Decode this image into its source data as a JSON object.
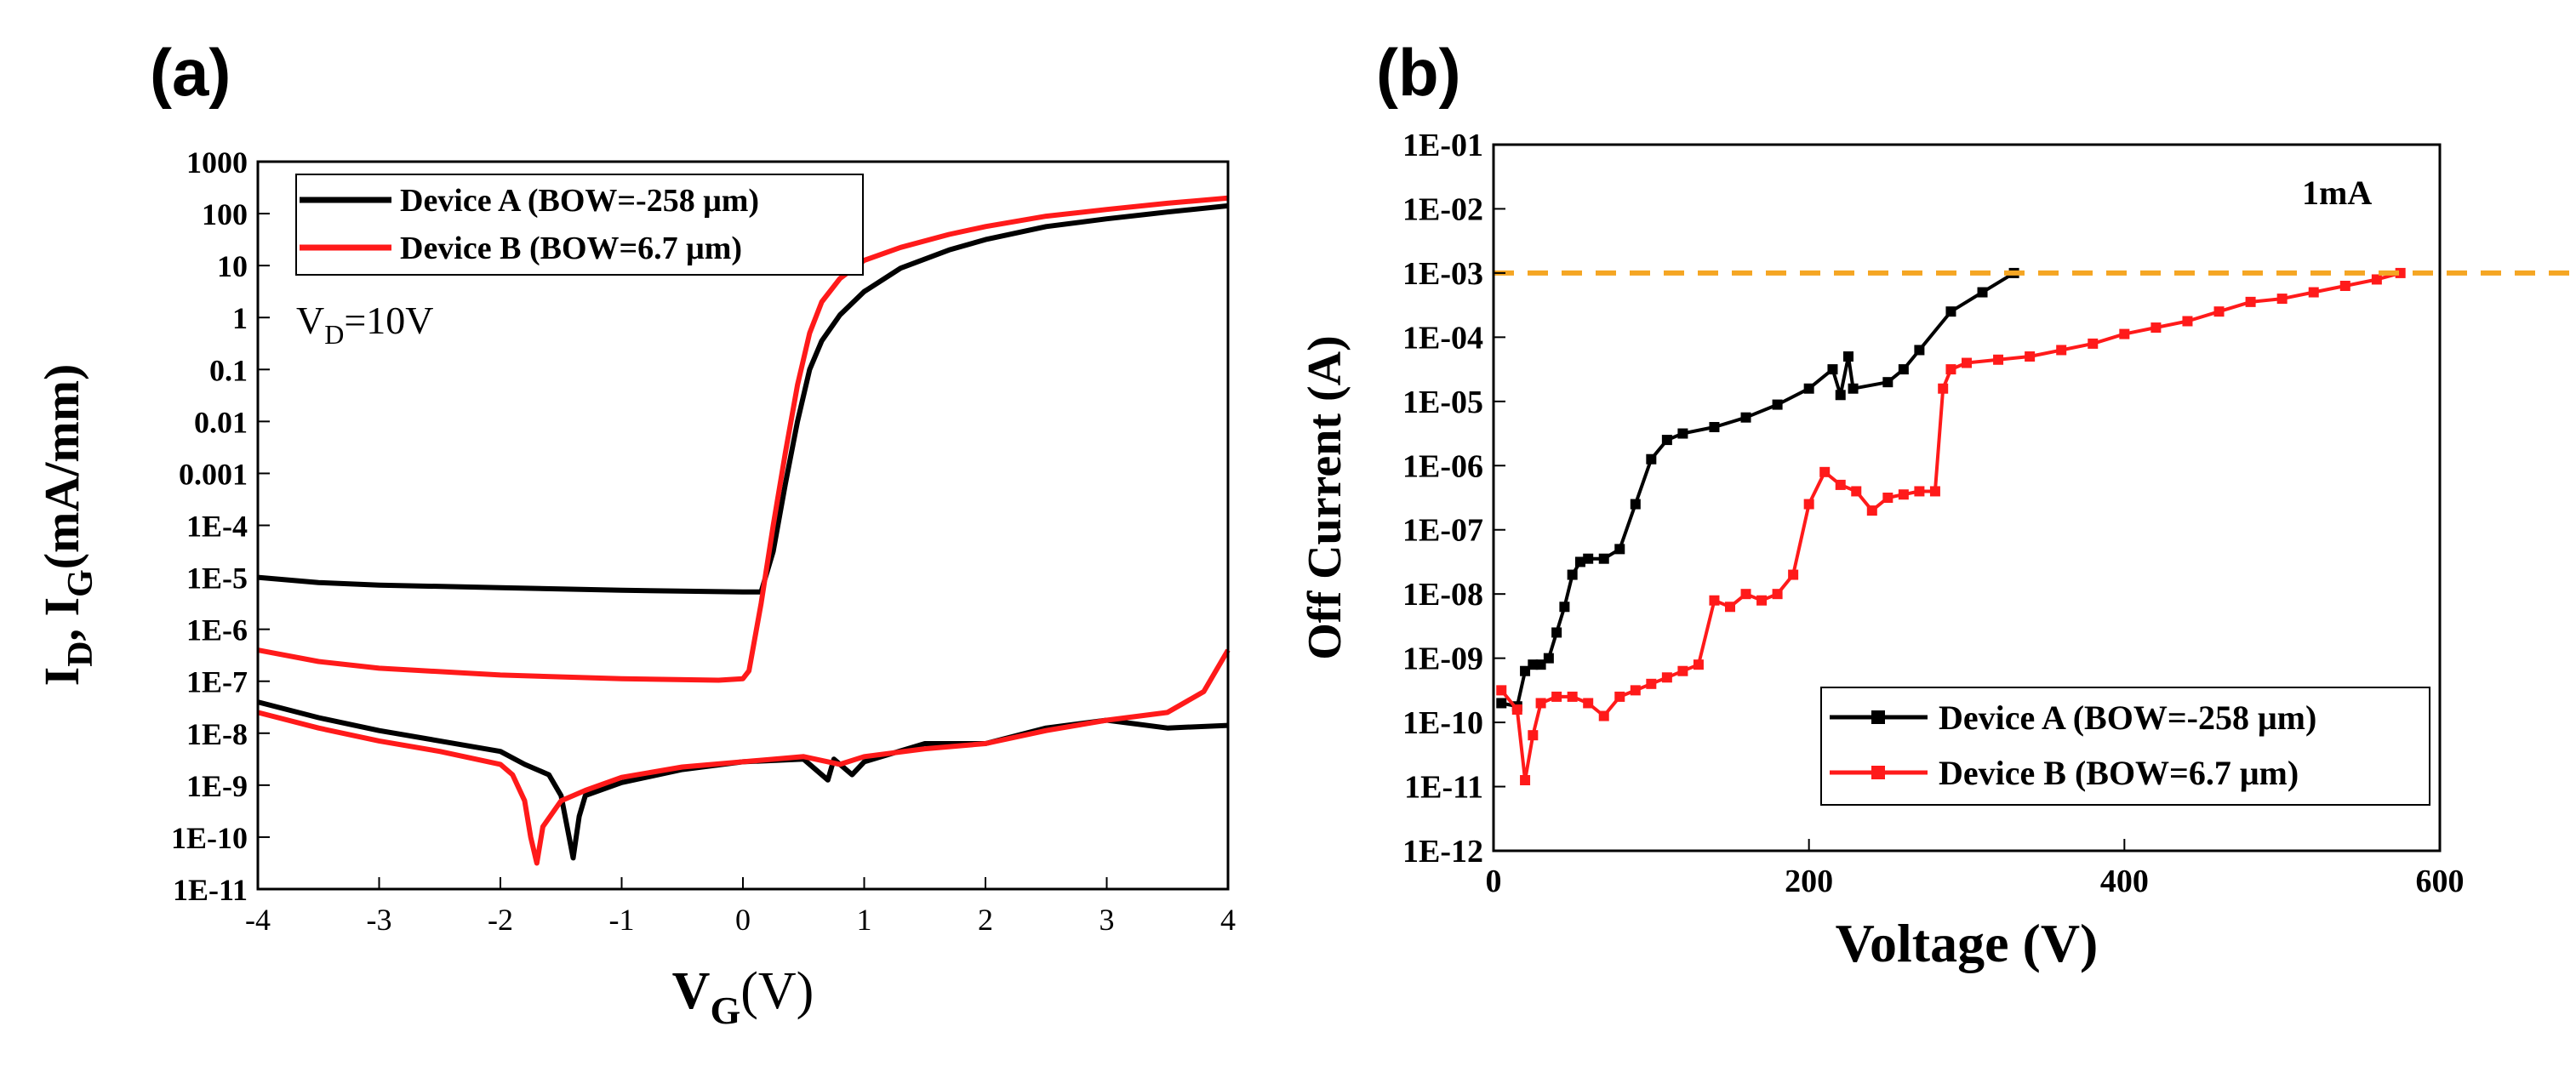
{
  "figure_labels": {
    "a": "(a)",
    "b": "(b)"
  },
  "chart_data": [
    {
      "id": "a",
      "type": "line",
      "scale": "log-y",
      "xlabel": "V",
      "xlabel_sub": "G",
      "xlabel_unit": "(V)",
      "ylabel": "I",
      "ylabel_sub1": "D",
      "ylabel_sep": ", I",
      "ylabel_sub2": "G",
      "ylabel_unit": "(mA/mm)",
      "xlim": [
        -4,
        4
      ],
      "ylim_log10": [
        -11,
        3
      ],
      "x_ticks": [
        -4,
        -3,
        -2,
        -1,
        0,
        1,
        2,
        3,
        4
      ],
      "x_tick_labels": [
        "-4",
        "-3",
        "-2",
        "-1",
        "0",
        "1",
        "2",
        "3",
        "4"
      ],
      "y_tick_log10": [
        3,
        2,
        1,
        0,
        -1,
        -2,
        -3,
        -4,
        -5,
        -6,
        -7,
        -8,
        -9,
        -10,
        -11
      ],
      "y_tick_labels": [
        "1000",
        "100",
        "10",
        "1",
        "0.1",
        "0.01",
        "0.001",
        "1E-4",
        "1E-5",
        "1E-6",
        "1E-7",
        "1E-8",
        "1E-9",
        "1E-10",
        "1E-11"
      ],
      "annotation": {
        "text_main": "V",
        "text_sub": "D",
        "text_rest": "=10V"
      },
      "legend": {
        "position": "top-left",
        "entries": [
          "Device A (BOW=-258 μm)",
          "Device B (BOW=6.7 μm)"
        ]
      },
      "series": [
        {
          "name": "Device A (BOW=-258 μm) I_D",
          "color": "#000000",
          "points": [
            [
              -4,
              -5.0
            ],
            [
              -3.5,
              -5.1
            ],
            [
              -3,
              -5.15
            ],
            [
              -2,
              -5.2
            ],
            [
              -1,
              -5.25
            ],
            [
              0,
              -5.28
            ],
            [
              0.15,
              -5.28
            ],
            [
              0.25,
              -4.5
            ],
            [
              0.35,
              -3.2
            ],
            [
              0.45,
              -2.0
            ],
            [
              0.55,
              -1.0
            ],
            [
              0.65,
              -0.45
            ],
            [
              0.8,
              0.05
            ],
            [
              1,
              0.5
            ],
            [
              1.3,
              0.95
            ],
            [
              1.7,
              1.3
            ],
            [
              2,
              1.5
            ],
            [
              2.5,
              1.75
            ],
            [
              3,
              1.9
            ],
            [
              3.5,
              2.03
            ],
            [
              4,
              2.15
            ]
          ]
        },
        {
          "name": "Device B (BOW=6.7 μm) I_D",
          "color": "#ff1a1a",
          "points": [
            [
              -4,
              -6.4
            ],
            [
              -3.5,
              -6.62
            ],
            [
              -3,
              -6.75
            ],
            [
              -2,
              -6.88
            ],
            [
              -1,
              -6.95
            ],
            [
              -0.2,
              -6.98
            ],
            [
              0,
              -6.95
            ],
            [
              0.05,
              -6.8
            ],
            [
              0.15,
              -5.5
            ],
            [
              0.25,
              -4.0
            ],
            [
              0.35,
              -2.6
            ],
            [
              0.45,
              -1.3
            ],
            [
              0.55,
              -0.3
            ],
            [
              0.65,
              0.3
            ],
            [
              0.8,
              0.75
            ],
            [
              1,
              1.1
            ],
            [
              1.3,
              1.35
            ],
            [
              1.7,
              1.6
            ],
            [
              2,
              1.75
            ],
            [
              2.5,
              1.95
            ],
            [
              3,
              2.08
            ],
            [
              3.5,
              2.2
            ],
            [
              4,
              2.3
            ]
          ]
        },
        {
          "name": "Device A (BOW=-258 μm) I_G",
          "color": "#000000",
          "points": [
            [
              -4,
              -7.4
            ],
            [
              -3.5,
              -7.7
            ],
            [
              -3,
              -7.95
            ],
            [
              -2.5,
              -8.15
            ],
            [
              -2,
              -8.35
            ],
            [
              -1.8,
              -8.6
            ],
            [
              -1.6,
              -8.8
            ],
            [
              -1.5,
              -9.2
            ],
            [
              -1.45,
              -9.8
            ],
            [
              -1.4,
              -10.4
            ],
            [
              -1.35,
              -9.6
            ],
            [
              -1.3,
              -9.2
            ],
            [
              -1,
              -8.95
            ],
            [
              -0.5,
              -8.7
            ],
            [
              0,
              -8.55
            ],
            [
              0.5,
              -8.5
            ],
            [
              0.7,
              -8.9
            ],
            [
              0.75,
              -8.5
            ],
            [
              0.9,
              -8.8
            ],
            [
              1,
              -8.55
            ],
            [
              1.5,
              -8.2
            ],
            [
              2,
              -8.2
            ],
            [
              2.5,
              -7.9
            ],
            [
              3,
              -7.75
            ],
            [
              3.5,
              -7.9
            ],
            [
              4,
              -7.85
            ]
          ]
        },
        {
          "name": "Device B (BOW=6.7 μm) I_G",
          "color": "#ff1a1a",
          "points": [
            [
              -4,
              -7.6
            ],
            [
              -3.5,
              -7.9
            ],
            [
              -3,
              -8.15
            ],
            [
              -2.5,
              -8.35
            ],
            [
              -2,
              -8.6
            ],
            [
              -1.9,
              -8.8
            ],
            [
              -1.8,
              -9.3
            ],
            [
              -1.75,
              -10.0
            ],
            [
              -1.7,
              -10.5
            ],
            [
              -1.65,
              -9.8
            ],
            [
              -1.5,
              -9.3
            ],
            [
              -1.3,
              -9.1
            ],
            [
              -1,
              -8.85
            ],
            [
              -0.5,
              -8.65
            ],
            [
              0,
              -8.55
            ],
            [
              0.5,
              -8.45
            ],
            [
              0.8,
              -8.6
            ],
            [
              1,
              -8.45
            ],
            [
              1.5,
              -8.3
            ],
            [
              2,
              -8.2
            ],
            [
              2.5,
              -7.95
            ],
            [
              3,
              -7.75
            ],
            [
              3.5,
              -7.6
            ],
            [
              3.8,
              -7.2
            ],
            [
              4,
              -6.4
            ]
          ]
        }
      ]
    },
    {
      "id": "b",
      "type": "line",
      "scale": "log-y",
      "xlabel": "Voltage (V)",
      "ylabel": "Off Current (A)",
      "xlim": [
        0,
        600
      ],
      "ylim_log10": [
        -12,
        -1
      ],
      "x_ticks": [
        0,
        200,
        400,
        600
      ],
      "x_tick_labels": [
        "0",
        "200",
        "400",
        "600"
      ],
      "y_tick_log10": [
        -1,
        -2,
        -3,
        -4,
        -5,
        -6,
        -7,
        -8,
        -9,
        -10,
        -11,
        -12
      ],
      "y_tick_labels": [
        "1E-01",
        "1E-02",
        "1E-03",
        "1E-04",
        "1E-05",
        "1E-06",
        "1E-07",
        "1E-08",
        "1E-09",
        "1E-10",
        "1E-11",
        "1E-12"
      ],
      "annotation": "1mA",
      "reference_line": {
        "y_log10": -3,
        "color": "#f5a623"
      },
      "legend": {
        "position": "bottom-right",
        "entries": [
          "Device A (BOW=-258 μm)",
          "Device B (BOW=6.7 μm)"
        ]
      },
      "series": [
        {
          "name": "Device A (BOW=-258 μm)",
          "color": "#000000",
          "points": [
            [
              5,
              -9.7
            ],
            [
              15,
              -9.75
            ],
            [
              20,
              -9.2
            ],
            [
              25,
              -9.1
            ],
            [
              30,
              -9.1
            ],
            [
              35,
              -9.0
            ],
            [
              40,
              -8.6
            ],
            [
              45,
              -8.2
            ],
            [
              50,
              -7.7
            ],
            [
              55,
              -7.5
            ],
            [
              60,
              -7.45
            ],
            [
              70,
              -7.45
            ],
            [
              80,
              -7.3
            ],
            [
              90,
              -6.6
            ],
            [
              100,
              -5.9
            ],
            [
              110,
              -5.6
            ],
            [
              120,
              -5.5
            ],
            [
              140,
              -5.4
            ],
            [
              160,
              -5.25
            ],
            [
              180,
              -5.05
            ],
            [
              200,
              -4.8
            ],
            [
              215,
              -4.5
            ],
            [
              220,
              -4.9
            ],
            [
              225,
              -4.3
            ],
            [
              228,
              -4.8
            ],
            [
              250,
              -4.7
            ],
            [
              260,
              -4.5
            ],
            [
              270,
              -4.2
            ],
            [
              290,
              -3.6
            ],
            [
              310,
              -3.3
            ],
            [
              330,
              -3.0
            ]
          ]
        },
        {
          "name": "Device B (BOW=6.7 μm)",
          "color": "#ff1a1a",
          "points": [
            [
              5,
              -9.5
            ],
            [
              15,
              -9.8
            ],
            [
              20,
              -10.9
            ],
            [
              25,
              -10.2
            ],
            [
              30,
              -9.7
            ],
            [
              40,
              -9.6
            ],
            [
              50,
              -9.6
            ],
            [
              60,
              -9.7
            ],
            [
              70,
              -9.9
            ],
            [
              80,
              -9.6
            ],
            [
              90,
              -9.5
            ],
            [
              100,
              -9.4
            ],
            [
              110,
              -9.3
            ],
            [
              120,
              -9.2
            ],
            [
              130,
              -9.1
            ],
            [
              140,
              -8.1
            ],
            [
              150,
              -8.2
            ],
            [
              160,
              -8.0
            ],
            [
              170,
              -8.1
            ],
            [
              180,
              -8.0
            ],
            [
              190,
              -7.7
            ],
            [
              200,
              -6.6
            ],
            [
              210,
              -6.1
            ],
            [
              220,
              -6.3
            ],
            [
              230,
              -6.4
            ],
            [
              240,
              -6.7
            ],
            [
              250,
              -6.5
            ],
            [
              260,
              -6.45
            ],
            [
              270,
              -6.4
            ],
            [
              280,
              -6.4
            ],
            [
              285,
              -4.8
            ],
            [
              290,
              -4.5
            ],
            [
              300,
              -4.4
            ],
            [
              320,
              -4.35
            ],
            [
              340,
              -4.3
            ],
            [
              360,
              -4.2
            ],
            [
              380,
              -4.1
            ],
            [
              400,
              -3.95
            ],
            [
              420,
              -3.85
            ],
            [
              440,
              -3.75
            ],
            [
              460,
              -3.6
            ],
            [
              480,
              -3.45
            ],
            [
              500,
              -3.4
            ],
            [
              520,
              -3.3
            ],
            [
              540,
              -3.2
            ],
            [
              560,
              -3.1
            ],
            [
              575,
              -3.0
            ]
          ]
        }
      ]
    }
  ]
}
